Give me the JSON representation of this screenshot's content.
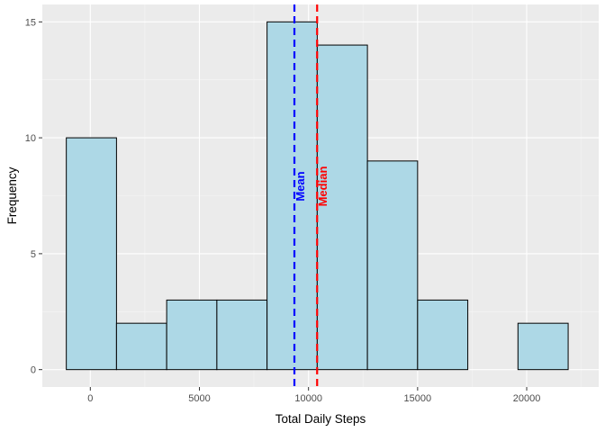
{
  "chart_data": {
    "type": "bar",
    "subtype": "histogram",
    "title": "",
    "xlabel": "Total Daily Steps",
    "ylabel": "Frequency",
    "xlim": [
      -2200,
      23300
    ],
    "ylim": [
      -0.75,
      15.75
    ],
    "x_ticks": [
      0,
      5000,
      10000,
      15000,
      20000
    ],
    "x_tick_labels": [
      "0",
      "5000",
      "10000",
      "15000",
      "20000"
    ],
    "y_ticks": [
      0,
      5,
      10,
      15
    ],
    "y_tick_labels": [
      "0",
      "5",
      "10",
      "15"
    ],
    "grid": true,
    "bins": [
      {
        "x0": -1100,
        "x1": 1200,
        "count": 10
      },
      {
        "x0": 1200,
        "x1": 3500,
        "count": 2
      },
      {
        "x0": 3500,
        "x1": 5800,
        "count": 3
      },
      {
        "x0": 5800,
        "x1": 8100,
        "count": 3
      },
      {
        "x0": 8100,
        "x1": 10400,
        "count": 15
      },
      {
        "x0": 10400,
        "x1": 12700,
        "count": 14
      },
      {
        "x0": 12700,
        "x1": 15000,
        "count": 9
      },
      {
        "x0": 15000,
        "x1": 17300,
        "count": 3
      },
      {
        "x0": 17300,
        "x1": 19600,
        "count": 0
      },
      {
        "x0": 19600,
        "x1": 21900,
        "count": 2
      }
    ],
    "bar_fill": "#add8e6",
    "bar_stroke": "#000000",
    "panel_background": "#ebebeb",
    "reference_lines": [
      {
        "label": "Mean",
        "value": 9354,
        "color": "#0000ff",
        "style": "dashed"
      },
      {
        "label": "Median",
        "value": 10395,
        "color": "#ff0000",
        "style": "dashed"
      }
    ]
  }
}
